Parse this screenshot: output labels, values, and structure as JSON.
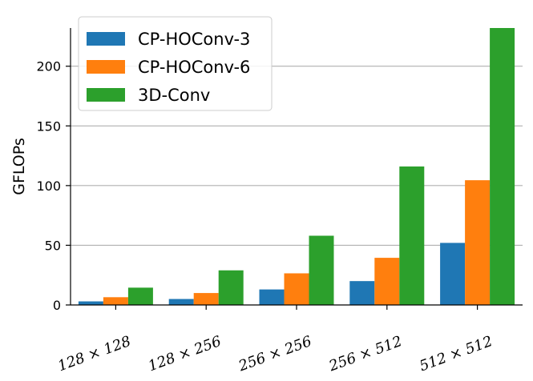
{
  "chart_data": {
    "type": "bar",
    "categories": [
      "128 × 128",
      "128 × 256",
      "256 × 256",
      "256 × 512",
      "512 × 512"
    ],
    "series": [
      {
        "name": "CP-HOConv-3",
        "color": "#1f77b4",
        "values": [
          3,
          5,
          13,
          20,
          52
        ]
      },
      {
        "name": "CP-HOConv-6",
        "color": "#ff7f0e",
        "values": [
          6.5,
          10,
          26.5,
          39.5,
          104.5
        ]
      },
      {
        "name": "3D-Conv",
        "color": "#2ca02c",
        "values": [
          14.5,
          29,
          58,
          116,
          232
        ]
      }
    ],
    "title": "",
    "xlabel": "",
    "ylabel": "GFLOPs",
    "ylim": [
      0,
      232
    ],
    "yticks": [
      0,
      50,
      100,
      150,
      200
    ],
    "grid": "horizontal",
    "legend_position": "top-left"
  }
}
